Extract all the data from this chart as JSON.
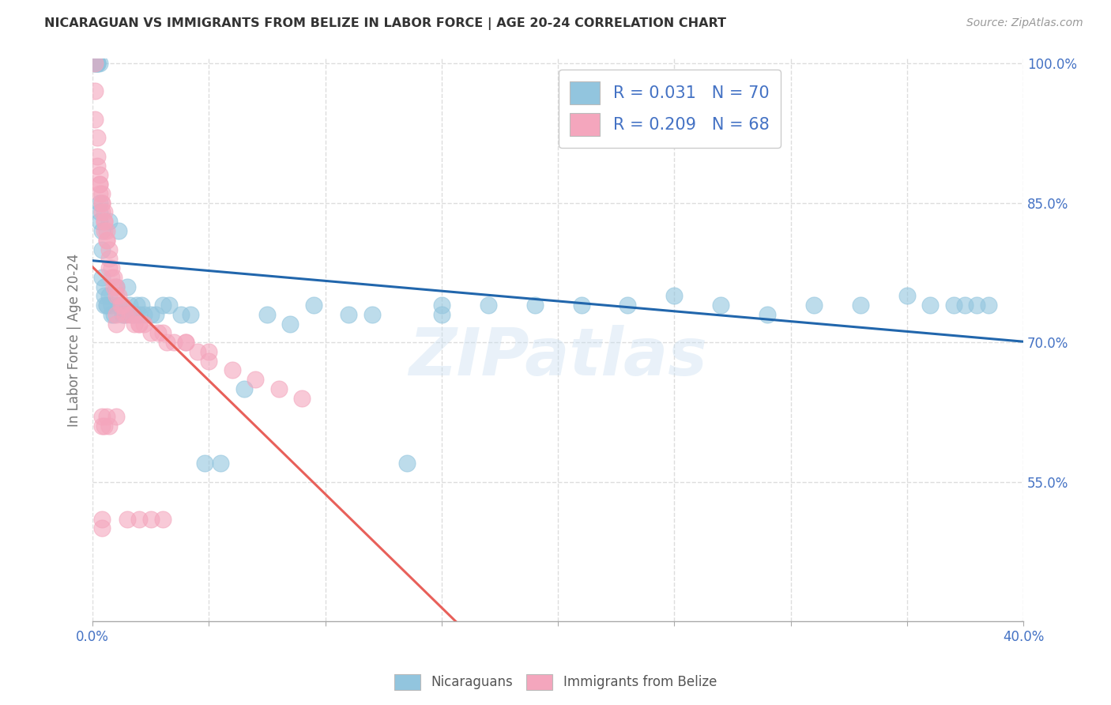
{
  "title": "NICARAGUAN VS IMMIGRANTS FROM BELIZE IN LABOR FORCE | AGE 20-24 CORRELATION CHART",
  "source": "Source: ZipAtlas.com",
  "ylabel": "In Labor Force | Age 20-24",
  "xlim": [
    0.0,
    0.4
  ],
  "ylim": [
    0.4,
    1.005
  ],
  "xtick_positions": [
    0.0,
    0.05,
    0.1,
    0.15,
    0.2,
    0.25,
    0.3,
    0.35,
    0.4
  ],
  "xtick_labels": [
    "0.0%",
    "",
    "",
    "",
    "",
    "",
    "",
    "",
    "40.0%"
  ],
  "ytick_positions": [
    0.55,
    0.7,
    0.85,
    1.0
  ],
  "ytick_labels": [
    "55.0%",
    "70.0%",
    "85.0%",
    "100.0%"
  ],
  "blue_color": "#92c5de",
  "pink_color": "#f4a6bd",
  "blue_line_color": "#2166ac",
  "pink_line_color": "#e8605a",
  "diagonal_color": "#cccccc",
  "watermark": "ZIPatlas",
  "background_color": "#ffffff",
  "grid_color": "#dddddd",
  "legend_text_color": "#4472c4",
  "axis_tick_color": "#4472c4",
  "title_color": "#333333",
  "source_color": "#999999",
  "bottom_legend_color": "#555555",
  "blue_x": [
    0.001,
    0.001,
    0.001,
    0.002,
    0.002,
    0.002,
    0.002,
    0.003,
    0.003,
    0.003,
    0.003,
    0.004,
    0.004,
    0.004,
    0.005,
    0.005,
    0.005,
    0.006,
    0.006,
    0.007,
    0.007,
    0.008,
    0.008,
    0.009,
    0.01,
    0.011,
    0.011,
    0.012,
    0.013,
    0.014,
    0.015,
    0.016,
    0.017,
    0.018,
    0.019,
    0.02,
    0.021,
    0.022,
    0.025,
    0.027,
    0.03,
    0.033,
    0.038,
    0.042,
    0.048,
    0.055,
    0.065,
    0.075,
    0.085,
    0.095,
    0.11,
    0.12,
    0.135,
    0.15,
    0.17,
    0.19,
    0.21,
    0.23,
    0.25,
    0.27,
    0.29,
    0.31,
    0.33,
    0.35,
    0.36,
    0.37,
    0.375,
    0.38,
    0.385,
    0.15
  ],
  "blue_y": [
    1.0,
    1.0,
    1.0,
    1.0,
    1.0,
    1.0,
    1.0,
    1.0,
    0.85,
    0.84,
    0.83,
    0.82,
    0.8,
    0.77,
    0.76,
    0.75,
    0.74,
    0.74,
    0.74,
    0.83,
    0.75,
    0.74,
    0.73,
    0.73,
    0.76,
    0.82,
    0.74,
    0.74,
    0.73,
    0.73,
    0.76,
    0.74,
    0.73,
    0.73,
    0.74,
    0.73,
    0.74,
    0.73,
    0.73,
    0.73,
    0.74,
    0.74,
    0.73,
    0.73,
    0.57,
    0.57,
    0.65,
    0.73,
    0.72,
    0.74,
    0.73,
    0.73,
    0.57,
    0.74,
    0.74,
    0.74,
    0.74,
    0.74,
    0.75,
    0.74,
    0.73,
    0.74,
    0.74,
    0.75,
    0.74,
    0.74,
    0.74,
    0.74,
    0.74,
    0.73
  ],
  "pink_x": [
    0.001,
    0.001,
    0.001,
    0.002,
    0.002,
    0.002,
    0.003,
    0.003,
    0.003,
    0.003,
    0.004,
    0.004,
    0.004,
    0.004,
    0.005,
    0.005,
    0.005,
    0.005,
    0.006,
    0.006,
    0.006,
    0.007,
    0.007,
    0.007,
    0.008,
    0.008,
    0.009,
    0.009,
    0.01,
    0.01,
    0.011,
    0.012,
    0.013,
    0.014,
    0.016,
    0.017,
    0.018,
    0.02,
    0.022,
    0.025,
    0.028,
    0.032,
    0.035,
    0.04,
    0.045,
    0.05,
    0.06,
    0.07,
    0.08,
    0.09,
    0.01,
    0.01,
    0.02,
    0.03,
    0.04,
    0.05,
    0.004,
    0.004,
    0.005,
    0.006,
    0.007,
    0.01,
    0.015,
    0.02,
    0.025,
    0.03,
    0.004,
    0.004
  ],
  "pink_y": [
    1.0,
    0.97,
    0.94,
    0.92,
    0.9,
    0.89,
    0.88,
    0.87,
    0.87,
    0.86,
    0.86,
    0.85,
    0.85,
    0.84,
    0.84,
    0.83,
    0.83,
    0.82,
    0.82,
    0.81,
    0.81,
    0.8,
    0.79,
    0.78,
    0.78,
    0.77,
    0.77,
    0.76,
    0.76,
    0.75,
    0.75,
    0.74,
    0.74,
    0.73,
    0.73,
    0.73,
    0.72,
    0.72,
    0.72,
    0.71,
    0.71,
    0.7,
    0.7,
    0.7,
    0.69,
    0.68,
    0.67,
    0.66,
    0.65,
    0.64,
    0.73,
    0.72,
    0.72,
    0.71,
    0.7,
    0.69,
    0.62,
    0.61,
    0.61,
    0.62,
    0.61,
    0.62,
    0.51,
    0.51,
    0.51,
    0.51,
    0.51,
    0.5
  ]
}
